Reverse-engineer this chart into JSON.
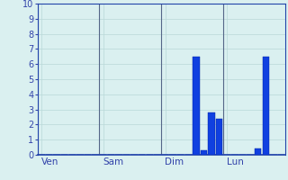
{
  "background_color": "#daf0f0",
  "grid_color": "#b8d8d8",
  "bar_color": "#1040e0",
  "bar_edge_color": "#0020a0",
  "ylim": [
    0,
    10
  ],
  "yticks": [
    0,
    1,
    2,
    3,
    4,
    5,
    6,
    7,
    8,
    9,
    10
  ],
  "day_labels": [
    "Ven",
    "Sam",
    "Dim",
    "Lun"
  ],
  "num_slots": 32,
  "values": [
    0,
    0,
    0,
    0,
    0,
    0,
    0,
    0,
    0,
    0,
    0,
    0,
    0,
    0,
    0,
    0,
    0,
    0,
    0,
    0,
    6.5,
    0.3,
    2.8,
    2.4,
    0,
    0,
    0,
    0,
    0.4,
    6.5,
    0,
    0
  ],
  "vline_color": "#556688",
  "tick_color": "#3344aa",
  "axis_color": "#2244aa",
  "label_fontsize": 7.5,
  "ytick_fontsize": 7
}
